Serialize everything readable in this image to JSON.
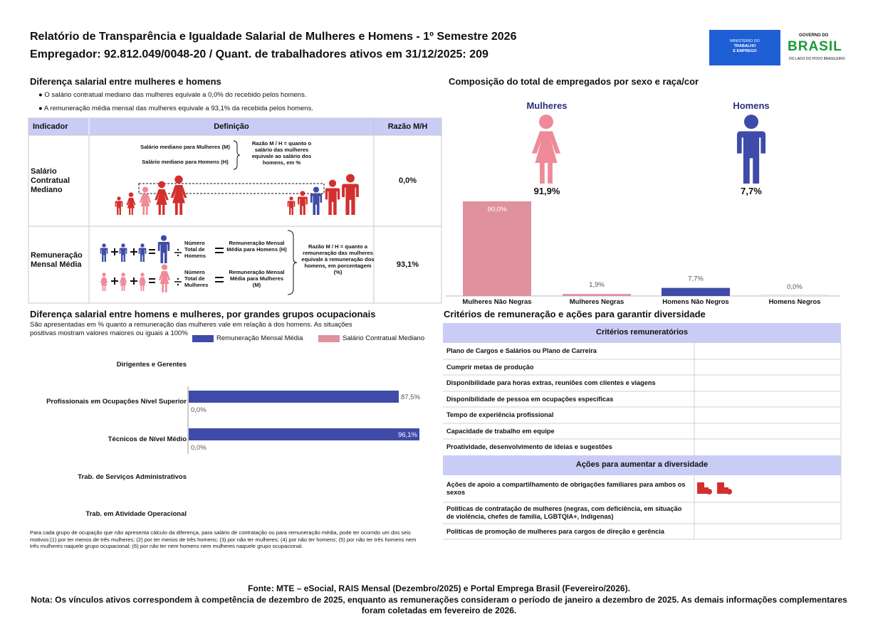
{
  "header": {
    "title": "Relatório de Transparência e Igualdade Salarial de Mulheres e Homens - 1º Semestre 2026",
    "subtitle": "Empregador: 92.812.049/0048-20 / Quant. de trabalhadores ativos em 31/12/2025: 209",
    "logo_ministry": [
      "MINISTÉRIO DO",
      "TRABALHO",
      "E EMPREGO"
    ],
    "logo_gov": {
      "top": "GOVERNO DO",
      "name": "BRASIL",
      "tagline": "DO LADO DO POVO BRASILEIRO"
    }
  },
  "salary_gap": {
    "title": "Diferença salarial entre mulheres e homens",
    "bullets": [
      "O salário contratual mediano das mulheres equivale a 0,0% do recebido pelos homens.",
      "A remuneração média mensal das mulheres equivale a 93,1% da recebida pelos homens."
    ],
    "table": {
      "headers": [
        "Indicador",
        "Definição",
        "Razão M/H"
      ],
      "rows": [
        {
          "indicator": "Salário Contratual Mediano",
          "definition": {
            "women": "Salário mediano para Mulheres (M)",
            "men": "Salário mediano para Homens (H)",
            "ratio_note": "Razão M / H = quanto o salário das mulheres equivale ao salário dos homens, em %"
          },
          "ratio": "0,0%"
        },
        {
          "indicator": "Remuneração Mensal Média",
          "definition": {
            "men_count": "Número Total de Homens",
            "men_result": "Remuneração Mensal Média para Homens (H)",
            "women_count": "Número Total de Mulheres",
            "women_result": "Remuneração Mensal Média para Mulheres (M)",
            "ratio_note": "Razão M / H = quanto a remuneração das mulheres equivale à remuneração dos homens, em porcentagem (%)"
          },
          "ratio": "93,1%"
        }
      ]
    }
  },
  "composition": {
    "type": "bar",
    "title": "Composição do total de empregados por sexo e raça/cor",
    "groups": [
      {
        "label": "Mulheres",
        "share": "91,9%"
      },
      {
        "label": "Homens",
        "share": "7,7%"
      }
    ],
    "categories": [
      "Mulheres Não Negras",
      "Mulheres Negras",
      "Homens Não Negros",
      "Homens Negros"
    ],
    "values": [
      90.0,
      1.9,
      7.7,
      0.0
    ],
    "value_labels": [
      "90,0%",
      "1,9%",
      "7,7%",
      "0,0%"
    ],
    "colors": [
      "#e0919e",
      "#e0919e",
      "#3f4ba8",
      "#3f4ba8"
    ]
  },
  "occupations": {
    "type": "bar",
    "orientation": "horizontal",
    "title": "Diferença salarial entre homens e mulheres, por grandes grupos ocupacionais",
    "subtitle": "São apresentadas em % quanto a remuneração das mulheres vale em relação à dos homens. As situações positivas mostram valores maiores ou iguais a 100%",
    "categories": [
      "Dirigentes e Gerentes",
      "Profissionais em Ocupações Nível Superior",
      "Técnicos de Nível Médio",
      "Trab. de Serviços Administrativos",
      "Trab. em Atividade Operacional"
    ],
    "series": [
      {
        "name": "Remuneração Mensal Média",
        "color": "#3f4ba8",
        "values": [
          null,
          87.5,
          96.1,
          null,
          null
        ],
        "value_labels": [
          null,
          "87,5%",
          "96,1%",
          null,
          null
        ]
      },
      {
        "name": "Salário Contratual Mediano",
        "color": "#e0919e",
        "values": [
          null,
          0.0,
          0.0,
          null,
          null
        ],
        "value_labels": [
          null,
          "0,0%",
          "0,0%",
          null,
          null
        ]
      }
    ],
    "footnote": "Para cada grupo de ocupação que não apresenta cálculo da diferença, para salário de contratação ou para remuneração média, pode ter ocorrido um dos seis motivos:(1) por ter menos de três mulheres; (2) por ter menos de três homens; (3) por não ter mulheres; (4) por não ter homens; (5) por não ter três homens nem três mulheres naquele grupo ocupacional; (6) por não ter nem homens nem mulheres naquele grupo ocupacional."
  },
  "criteria": {
    "title": "Critérios de remuneração e ações para garantir diversidade",
    "remuneration": {
      "header": "Critérios remuneratórios",
      "rows": [
        "Plano de Cargos e Salários ou Plano de Carreira",
        "Cumprir metas de produção",
        "Disponibilidade para horas extras, reuniões com clientes e viagens",
        "Disponibilidade de pessoa em ocupações específicas",
        "Tempo de experiência profissional",
        "Capacidade de trabalho em equipe",
        "Proatividade, desenvolvimento de ideias e sugestões"
      ]
    },
    "actions": {
      "header": "Ações para aumentar a diversidade",
      "rows": [
        "Ações de apoio a compartilhamento de obrigações familiares para ambos os sexos",
        "Políticas de contratação de mulheres (negras, com deficiência, em situação de violência, chefes de família, LGBTQIA+, Indígenas)",
        "Políticas de promoção de mulheres para cargos de direção e gerência"
      ]
    }
  },
  "footer": {
    "source": "Fonte: MTE – eSocial, RAIS Mensal (Dezembro/2025) e Portal Emprega Brasil (Fevereiro/2026).",
    "note": "Nota: Os vínculos ativos correspondem à competência de dezembro de 2025, enquanto as remunerações consideram o período de janeiro a dezembro de 2025. As demais informações complementares foram coletadas em fevereiro de 2026."
  }
}
